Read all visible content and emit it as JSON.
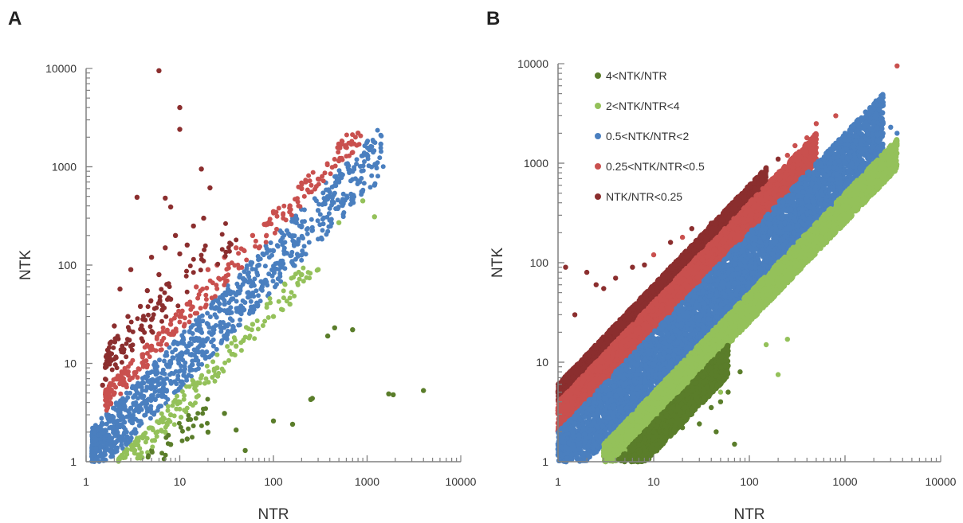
{
  "chart_data": [
    {
      "panel_label": "A",
      "type": "scatter",
      "xlabel": "NTR",
      "ylabel": "NTK",
      "x_scale": "log",
      "y_scale": "log",
      "xlim": [
        1,
        10000
      ],
      "ylim": [
        1,
        10000
      ],
      "x_ticks": [
        "1",
        "10",
        "100",
        "1000",
        "10000"
      ],
      "y_ticks": [
        "1",
        "10",
        "100",
        "1000",
        "10000"
      ],
      "grid": false,
      "legend": null,
      "series": [
        {
          "color": "#8b2e2e",
          "category": "NTK/NTR<0.25",
          "points": [
            [
              6,
              9500
            ],
            [
              10,
              4000
            ],
            [
              10,
              2400
            ],
            [
              17,
              950
            ],
            [
              21,
              610
            ],
            [
              7,
              480
            ],
            [
              3.5,
              490
            ],
            [
              8,
              390
            ],
            [
              18,
              300
            ],
            [
              9,
              200
            ],
            [
              14,
              250
            ],
            [
              7,
              150
            ],
            [
              12,
              160
            ],
            [
              5,
              120
            ],
            [
              10,
              130
            ],
            [
              3,
              90
            ],
            [
              6,
              80
            ],
            [
              2.3,
              57
            ],
            [
              4.5,
              55
            ],
            [
              8,
              45
            ],
            [
              3.8,
              38
            ],
            [
              6.5,
              35
            ],
            [
              2.8,
              30
            ],
            [
              5,
              28
            ],
            [
              2,
              24
            ],
            [
              4,
              22
            ],
            [
              1.8,
              16
            ],
            [
              3,
              15
            ],
            [
              2.5,
              13
            ],
            [
              1.5,
              6
            ],
            [
              2,
              5
            ]
          ]
        },
        {
          "color": "#c9504e",
          "category": "0.25<NTK/NTR<0.5",
          "points": [
            [
              800,
              2200
            ],
            [
              700,
              1400
            ],
            [
              500,
              1150
            ],
            [
              300,
              750
            ],
            [
              200,
              600
            ],
            [
              150,
              400
            ],
            [
              100,
              350
            ],
            [
              80,
              260
            ],
            [
              60,
              200
            ],
            [
              40,
              150
            ],
            [
              30,
              120
            ],
            [
              25,
              100
            ],
            [
              20,
              90
            ],
            [
              15,
              60
            ],
            [
              12,
              40
            ],
            [
              10,
              30
            ],
            [
              8,
              25
            ],
            [
              6,
              20
            ],
            [
              5,
              15
            ],
            [
              4,
              12
            ],
            [
              3,
              10
            ],
            [
              2.5,
              7
            ],
            [
              2,
              5
            ],
            [
              1.8,
              4
            ]
          ]
        },
        {
          "color": "#4a7fbf",
          "category": "0.5<NTK/NTR<2",
          "points": [
            [
              1400,
              1700
            ],
            [
              1200,
              650
            ],
            [
              900,
              1300
            ],
            [
              700,
              900
            ],
            [
              500,
              700
            ],
            [
              400,
              500
            ],
            [
              300,
              360
            ],
            [
              200,
              250
            ],
            [
              150,
              200
            ],
            [
              100,
              140
            ],
            [
              70,
              100
            ],
            [
              50,
              70
            ],
            [
              40,
              50
            ],
            [
              30,
              40
            ],
            [
              20,
              25
            ],
            [
              15,
              18
            ],
            [
              10,
              12
            ],
            [
              8,
              10
            ],
            [
              6,
              7
            ],
            [
              5,
              6
            ],
            [
              4,
              4.5
            ],
            [
              3,
              3.5
            ],
            [
              2.5,
              2.8
            ],
            [
              2,
              2.2
            ],
            [
              1.5,
              1.6
            ],
            [
              1.2,
              1.3
            ]
          ]
        },
        {
          "color": "#94c15a",
          "category": "2<NTK/NTR<4",
          "points": [
            [
              1200,
              310
            ],
            [
              900,
              450
            ],
            [
              500,
              270
            ],
            [
              300,
              90
            ],
            [
              200,
              80
            ],
            [
              150,
              40
            ],
            [
              100,
              30
            ],
            [
              60,
              25
            ],
            [
              40,
              15
            ],
            [
              25,
              9
            ],
            [
              15,
              6
            ],
            [
              10,
              4
            ],
            [
              8,
              3
            ],
            [
              6,
              2.5
            ],
            [
              4,
              1.8
            ],
            [
              3,
              1.5
            ],
            [
              2.5,
              1.1
            ]
          ]
        },
        {
          "color": "#5a7d2a",
          "category": "4<NTK/NTR",
          "points": [
            [
              4000,
              5.3
            ],
            [
              1900,
              4.8
            ],
            [
              1700,
              4.9
            ],
            [
              700,
              22
            ],
            [
              450,
              23
            ],
            [
              380,
              19
            ],
            [
              250,
              4.3
            ],
            [
              260,
              4.4
            ],
            [
              160,
              2.4
            ],
            [
              100,
              2.6
            ],
            [
              50,
              1.3
            ],
            [
              40,
              2.1
            ],
            [
              30,
              3.1
            ],
            [
              20,
              2
            ],
            [
              12,
              1.7
            ],
            [
              8,
              1.5
            ],
            [
              5,
              1.3
            ]
          ]
        }
      ]
    },
    {
      "panel_label": "B",
      "type": "scatter",
      "xlabel": "NTR",
      "ylabel": "NTK",
      "x_scale": "log",
      "y_scale": "log",
      "xlim": [
        1,
        10000
      ],
      "ylim": [
        1,
        10000
      ],
      "x_ticks": [
        "1",
        "10",
        "100",
        "1000",
        "10000"
      ],
      "y_ticks": [
        "1",
        "10",
        "100",
        "1000",
        "10000"
      ],
      "grid": false,
      "legend": {
        "placement": "top-left",
        "entries": [
          {
            "label": "4<NTK/NTR",
            "color": "#5a7d2a"
          },
          {
            "label": "2<NTK/NTR<4",
            "color": "#94c15a"
          },
          {
            "label": "0.5<NTK/NTR<2",
            "color": "#4a7fbf"
          },
          {
            "label": "0.25<NTK/NTR<0.5",
            "color": "#c9504e"
          },
          {
            "label": "NTK/NTR<0.25",
            "color": "#8b2e2e"
          }
        ]
      },
      "bands": [
        {
          "color": "#8b2e2e",
          "category": "NTK/NTR<0.25",
          "ratio_range": [
            4,
            6
          ],
          "x_range": [
            1,
            150
          ]
        },
        {
          "color": "#c9504e",
          "category": "0.25<NTK/NTR<0.5",
          "ratio_range": [
            2,
            4
          ],
          "x_range": [
            1,
            500
          ]
        },
        {
          "color": "#4a7fbf",
          "category": "0.5<NTK/NTR<2",
          "ratio_range": [
            0.5,
            2
          ],
          "x_range": [
            1,
            2500
          ]
        },
        {
          "color": "#94c15a",
          "category": "2<NTK/NTR<4",
          "ratio_range": [
            0.25,
            0.5
          ],
          "x_range": [
            3,
            3500
          ]
        },
        {
          "color": "#5a7d2a",
          "category": "4<NTK/NTR",
          "ratio_range": [
            0.12,
            0.25
          ],
          "x_range": [
            4,
            60
          ]
        }
      ],
      "series": [
        {
          "color": "#8b2e2e",
          "category": "NTK/NTR<0.25",
          "points": [
            [
              1.2,
              90
            ],
            [
              1.5,
              30
            ],
            [
              2,
              80
            ],
            [
              2.5,
              60
            ],
            [
              3,
              55
            ],
            [
              4,
              70
            ],
            [
              6,
              90
            ],
            [
              8,
              95
            ],
            [
              15,
              160
            ],
            [
              25,
              220
            ],
            [
              40,
              250
            ],
            [
              70,
              400
            ],
            [
              100,
              500
            ],
            [
              150,
              900
            ],
            [
              200,
              1100
            ]
          ]
        },
        {
          "color": "#c9504e",
          "category": "0.25<NTK/NTR<0.5",
          "points": [
            [
              3500,
              9500
            ],
            [
              800,
              3000
            ],
            [
              500,
              2500
            ],
            [
              400,
              1800
            ],
            [
              300,
              1500
            ],
            [
              250,
              1200
            ],
            [
              10,
              120
            ],
            [
              20,
              180
            ]
          ]
        },
        {
          "color": "#4a7fbf",
          "category": "0.5<NTK/NTR<2",
          "points": [
            [
              2000,
              3900
            ],
            [
              2500,
              2500
            ],
            [
              3000,
              2300
            ],
            [
              1500,
              1700
            ],
            [
              1000,
              2000
            ],
            [
              3500,
              2000
            ]
          ]
        },
        {
          "color": "#94c15a",
          "category": "2<NTK/NTR<4",
          "points": [
            [
              3500,
              1500
            ],
            [
              2500,
              900
            ],
            [
              1500,
              600
            ],
            [
              800,
              300
            ],
            [
              300,
              80
            ],
            [
              200,
              60
            ],
            [
              100,
              35
            ],
            [
              60,
              20
            ],
            [
              40,
              12
            ],
            [
              25,
              8
            ],
            [
              15,
              5
            ],
            [
              10,
              3
            ],
            [
              7,
              2
            ],
            [
              5,
              1.3
            ],
            [
              150,
              15
            ],
            [
              250,
              17
            ],
            [
              200,
              7.5
            ],
            [
              50,
              5
            ]
          ]
        },
        {
          "color": "#5a7d2a",
          "category": "4<NTK/NTR",
          "points": [
            [
              5,
              1.2
            ],
            [
              6,
              1.5
            ],
            [
              8,
              1.3
            ],
            [
              10,
              2
            ],
            [
              12,
              1.8
            ],
            [
              15,
              2.5
            ],
            [
              20,
              2.2
            ],
            [
              25,
              3
            ],
            [
              30,
              2.4
            ],
            [
              40,
              3.5
            ],
            [
              45,
              2
            ],
            [
              50,
              4
            ],
            [
              60,
              5
            ],
            [
              70,
              1.5
            ],
            [
              80,
              8
            ]
          ]
        }
      ]
    }
  ]
}
